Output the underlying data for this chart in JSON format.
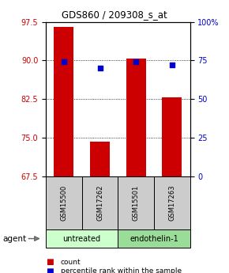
{
  "title": "GDS860 / 209308_s_at",
  "samples": [
    "GSM15500",
    "GSM17262",
    "GSM15501",
    "GSM17263"
  ],
  "bar_values": [
    96.5,
    74.2,
    90.3,
    82.8
  ],
  "percentile_values": [
    74.0,
    70.0,
    74.0,
    72.0
  ],
  "bar_color": "#cc0000",
  "dot_color": "#0000cc",
  "ylim_left": [
    67.5,
    97.5
  ],
  "yticks_left": [
    67.5,
    75.0,
    82.5,
    90.0,
    97.5
  ],
  "yticks_right": [
    0,
    25,
    50,
    75,
    100
  ],
  "ylabel_left_color": "#cc0000",
  "ylabel_right_color": "#0000cc",
  "groups": [
    {
      "label": "untreated",
      "samples": [
        "GSM15500",
        "GSM17262"
      ],
      "color": "#ccffcc"
    },
    {
      "label": "endothelin-1",
      "samples": [
        "GSM15501",
        "GSM17263"
      ],
      "color": "#99dd99"
    }
  ],
  "agent_label": "agent",
  "legend_count_label": "count",
  "legend_percentile_label": "percentile rank within the sample",
  "bar_width": 0.55,
  "sample_box_color": "#cccccc"
}
